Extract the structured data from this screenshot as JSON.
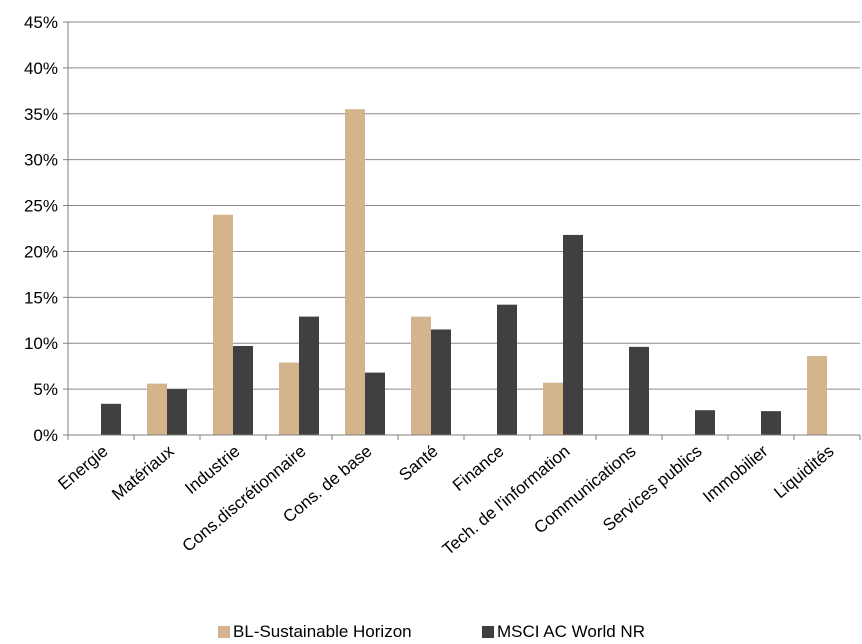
{
  "chart_data": {
    "type": "bar",
    "categories": [
      "Energie",
      "Matériaux",
      "Industrie",
      "Cons.discrétionnaire",
      "Cons. de base",
      "Santé",
      "Finance",
      "Tech. de l'information",
      "Communications",
      "Services publics",
      "Immobilier",
      "Liquidités"
    ],
    "series": [
      {
        "name": "BL-Sustainable Horizon",
        "color": "#d4b48c",
        "values": [
          0,
          5.6,
          24.0,
          7.9,
          35.5,
          12.9,
          0,
          5.7,
          0,
          0,
          0,
          8.6
        ]
      },
      {
        "name": "MSCI AC World NR",
        "color": "#404040",
        "values": [
          3.4,
          5.0,
          9.7,
          12.9,
          6.8,
          11.5,
          14.2,
          21.8,
          9.6,
          2.7,
          2.6,
          0
        ]
      }
    ],
    "y_ticks": [
      "0%",
      "5%",
      "10%",
      "15%",
      "20%",
      "25%",
      "30%",
      "35%",
      "40%",
      "45%"
    ],
    "ylim": [
      0,
      45
    ],
    "grid": true,
    "legend_position": "bottom"
  }
}
